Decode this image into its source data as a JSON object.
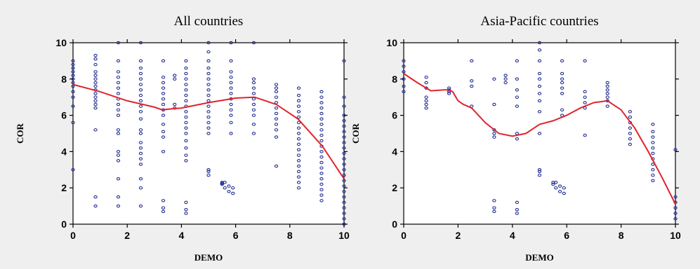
{
  "chart_data": [
    {
      "type": "scatter",
      "title": "All countries",
      "xlabel": "DEMO",
      "ylabel": "COR",
      "xlim": [
        0,
        10
      ],
      "ylim": [
        0,
        10
      ],
      "xticks": [
        0,
        2,
        4,
        6,
        8,
        10
      ],
      "yticks": [
        0,
        2,
        4,
        6,
        8,
        10
      ],
      "marker_color": "#1f2a8f",
      "fit_color": "#e0242c",
      "grid": false,
      "points": [
        {
          "x": 0,
          "y": [
            3.0,
            5.6,
            6.5,
            7.0,
            7.3,
            7.6,
            7.8,
            8.0,
            8.2,
            8.4,
            8.6,
            8.8,
            9.0
          ]
        },
        {
          "x": 0.83,
          "y": [
            1.0,
            1.5,
            5.2,
            6.4,
            6.6,
            6.8,
            7.0,
            7.2,
            7.4,
            7.6,
            7.8,
            8.0,
            8.2,
            8.4,
            8.8,
            9.1,
            9.3
          ]
        },
        {
          "x": 1.67,
          "y": [
            1.0,
            1.5,
            2.5,
            3.5,
            3.8,
            4.0,
            5.0,
            5.2,
            6.0,
            6.3,
            6.6,
            6.9,
            7.2,
            7.5,
            7.8,
            8.1,
            8.4,
            9.0,
            10.0
          ]
        },
        {
          "x": 2.5,
          "y": [
            1.0,
            2.0,
            2.5,
            3.3,
            3.6,
            3.9,
            4.2,
            4.5,
            5.0,
            5.2,
            5.8,
            6.2,
            6.5,
            6.8,
            7.1,
            7.4,
            7.7,
            8.0,
            8.3,
            8.6,
            9.0,
            10.0
          ]
        },
        {
          "x": 3.33,
          "y": [
            0.7,
            0.9,
            1.3,
            4.0,
            4.8,
            5.1,
            5.5,
            6.0,
            6.3,
            6.6,
            6.9,
            7.2,
            7.5,
            7.8,
            8.1,
            9.0
          ]
        },
        {
          "x": 3.75,
          "y": [
            6.4,
            6.6,
            8.0,
            8.2
          ]
        },
        {
          "x": 4.17,
          "y": [
            0.6,
            0.8,
            1.2,
            3.5,
            3.8,
            4.2,
            4.6,
            5.0,
            5.3,
            5.6,
            5.9,
            6.2,
            6.5,
            6.8,
            7.1,
            7.4,
            7.7,
            8.0,
            8.3,
            8.6,
            9.0
          ]
        },
        {
          "x": 5.0,
          "y": [
            2.7,
            2.9,
            3.0,
            5.0,
            5.3,
            5.6,
            5.9,
            6.2,
            6.5,
            6.8,
            7.1,
            7.4,
            7.7,
            8.0,
            8.3,
            8.6,
            9.0,
            9.5,
            10.0
          ]
        },
        {
          "x": 5.5,
          "y": [
            2.2,
            2.3,
            2.25
          ]
        },
        {
          "x": 5.6,
          "y": [
            2.0,
            2.3
          ]
        },
        {
          "x": 5.75,
          "y": [
            1.8,
            2.1
          ]
        },
        {
          "x": 5.9,
          "y": [
            1.7,
            2.0
          ]
        },
        {
          "x": 5.83,
          "y": [
            5.0,
            5.6,
            6.0,
            6.3,
            6.6,
            6.9,
            7.2,
            7.5,
            7.8,
            8.1,
            8.4,
            9.0,
            10.0
          ]
        },
        {
          "x": 6.67,
          "y": [
            5.0,
            5.5,
            6.0,
            6.3,
            6.6,
            6.9,
            7.2,
            7.5,
            7.8,
            8.0,
            10.0
          ]
        },
        {
          "x": 7.5,
          "y": [
            3.2,
            4.8,
            5.2,
            5.5,
            5.8,
            6.1,
            6.4,
            6.7,
            7.0,
            7.3,
            7.5,
            7.7
          ]
        },
        {
          "x": 8.33,
          "y": [
            2.0,
            2.3,
            2.6,
            2.9,
            3.2,
            3.5,
            3.8,
            4.1,
            4.4,
            4.7,
            5.0,
            5.3,
            5.6,
            5.9,
            6.2,
            6.5,
            6.8,
            7.1,
            7.5
          ]
        },
        {
          "x": 9.17,
          "y": [
            1.3,
            1.6,
            1.9,
            2.2,
            2.5,
            2.8,
            3.1,
            3.4,
            3.7,
            4.0,
            4.3,
            4.6,
            4.9,
            5.2,
            5.5,
            5.8,
            6.1,
            6.4,
            6.7,
            7.0,
            7.3
          ]
        },
        {
          "x": 10.0,
          "y": [
            0.0,
            0.3,
            0.6,
            0.9,
            1.2,
            1.5,
            1.8,
            2.1,
            2.4,
            2.7,
            3.0,
            3.3,
            3.6,
            3.9,
            4.2,
            4.5,
            4.8,
            5.1,
            5.4,
            5.7,
            6.0,
            6.5,
            7.0,
            9.0
          ]
        }
      ],
      "fit_line": {
        "x": [
          0,
          1,
          2,
          3,
          3.3,
          3.6,
          4,
          5,
          6,
          6.7,
          7.5,
          8.3,
          9.2,
          10
        ],
        "y": [
          7.7,
          7.3,
          6.8,
          6.45,
          6.3,
          6.35,
          6.4,
          6.7,
          6.95,
          7.0,
          6.6,
          5.8,
          4.3,
          2.5
        ]
      }
    },
    {
      "type": "scatter",
      "title": "Asia-Pacific countries",
      "xlabel": "DEMO",
      "ylabel": "COR",
      "xlim": [
        0,
        10
      ],
      "ylim": [
        0,
        10
      ],
      "xticks": [
        0,
        2,
        4,
        6,
        8,
        10
      ],
      "yticks": [
        0,
        2,
        4,
        6,
        8,
        10
      ],
      "marker_color": "#1f2a8f",
      "fit_color": "#e0242c",
      "grid": false,
      "points": [
        {
          "x": 0,
          "y": [
            7.3,
            7.6,
            8.0,
            8.4,
            8.7,
            9.0
          ]
        },
        {
          "x": 0.83,
          "y": [
            6.4,
            6.6,
            6.8,
            7.0,
            7.5,
            7.8,
            8.1
          ]
        },
        {
          "x": 1.67,
          "y": [
            7.2,
            7.4,
            7.3,
            7.5
          ]
        },
        {
          "x": 2.5,
          "y": [
            6.5,
            7.6,
            7.9,
            9.0
          ]
        },
        {
          "x": 3.33,
          "y": [
            0.7,
            0.9,
            1.3,
            4.8,
            5.0,
            5.2,
            6.6,
            8.0
          ]
        },
        {
          "x": 3.75,
          "y": [
            7.8,
            8.0,
            8.2
          ]
        },
        {
          "x": 4.17,
          "y": [
            0.6,
            0.8,
            1.2,
            4.7,
            5.0,
            6.5,
            7.0,
            7.4,
            8.0,
            9.0
          ]
        },
        {
          "x": 5.0,
          "y": [
            2.7,
            2.9,
            3.0,
            5.0,
            6.2,
            6.8,
            7.2,
            7.6,
            8.0,
            8.3,
            9.0,
            9.6,
            10.0
          ]
        },
        {
          "x": 5.5,
          "y": [
            2.2,
            2.3
          ]
        },
        {
          "x": 5.6,
          "y": [
            2.0,
            2.3
          ]
        },
        {
          "x": 5.75,
          "y": [
            1.8,
            2.1
          ]
        },
        {
          "x": 5.9,
          "y": [
            1.7,
            2.0
          ]
        },
        {
          "x": 5.83,
          "y": [
            6.0,
            6.3,
            7.2,
            7.5,
            7.8,
            8.0,
            8.3,
            9.0
          ]
        },
        {
          "x": 6.67,
          "y": [
            4.9,
            6.4,
            6.7,
            7.0,
            7.3,
            9.0
          ]
        },
        {
          "x": 7.5,
          "y": [
            6.5,
            6.8,
            7.0,
            7.2,
            7.4,
            7.6,
            7.8
          ]
        },
        {
          "x": 8.33,
          "y": [
            4.4,
            4.7,
            5.0,
            5.3,
            5.6,
            5.9,
            6.2
          ]
        },
        {
          "x": 9.17,
          "y": [
            2.4,
            2.7,
            3.0,
            3.3,
            3.6,
            3.9,
            4.2,
            4.5,
            4.8,
            5.1,
            5.5
          ]
        },
        {
          "x": 10.0,
          "y": [
            0.3,
            0.6,
            0.9,
            1.2,
            1.5,
            4.1
          ]
        }
      ],
      "fit_line": {
        "x": [
          0,
          0.5,
          1,
          1.5,
          1.67,
          1.8,
          2,
          2.2,
          2.5,
          3,
          3.5,
          4,
          4.5,
          5,
          5.5,
          6,
          6.5,
          7,
          7.5,
          8,
          8.5,
          9,
          9.5,
          10
        ],
        "y": [
          8.3,
          7.8,
          7.35,
          7.4,
          7.4,
          7.3,
          6.8,
          6.6,
          6.4,
          5.6,
          5.0,
          4.85,
          5.0,
          5.5,
          5.7,
          6.0,
          6.4,
          6.7,
          6.8,
          6.3,
          5.3,
          4.0,
          2.6,
          1.1
        ]
      }
    }
  ]
}
